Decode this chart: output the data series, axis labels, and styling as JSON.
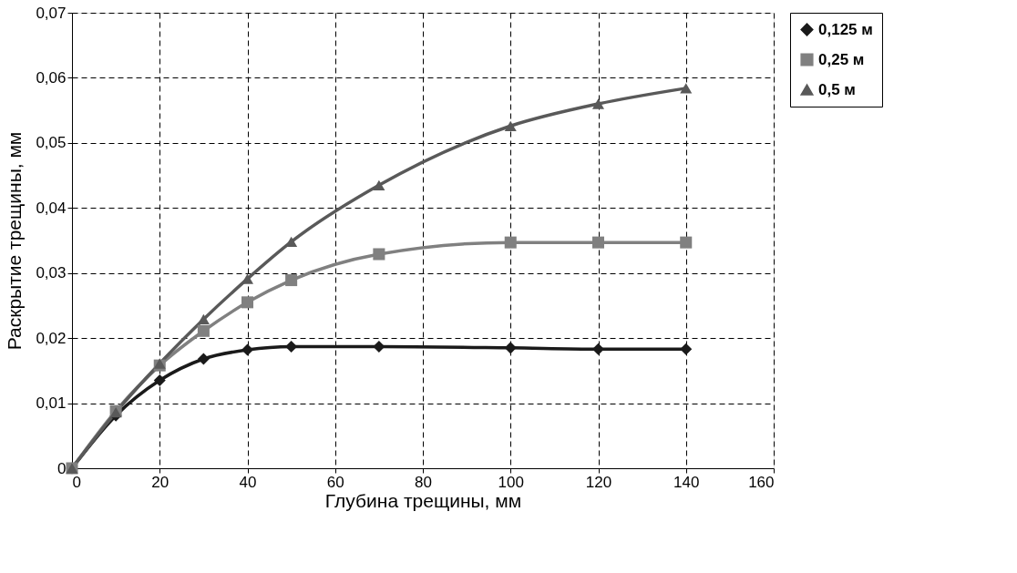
{
  "chart_data": {
    "type": "line",
    "xlabel": "Глубина трещины, мм",
    "ylabel": "Раскрытие трещины, мм",
    "x": [
      0,
      10,
      20,
      30,
      40,
      50,
      70,
      100,
      120,
      140
    ],
    "series": [
      {
        "name": "0,125 м",
        "color": "#1a1a1a",
        "marker": "diamond",
        "values": [
          0,
          0.0081,
          0.0135,
          0.0168,
          0.0182,
          0.0187,
          0.0187,
          0.0185,
          0.0183,
          0.0183
        ]
      },
      {
        "name": "0,25 м",
        "color": "#808080",
        "marker": "square",
        "values": [
          0,
          0.0088,
          0.0158,
          0.0211,
          0.0255,
          0.0289,
          0.0329,
          0.0347,
          0.0347,
          0.0347
        ]
      },
      {
        "name": "0,5 м",
        "color": "#595959",
        "marker": "triangle",
        "values": [
          0,
          0.0086,
          0.0161,
          0.0229,
          0.0291,
          0.0348,
          0.0435,
          0.0526,
          0.056,
          0.0584
        ]
      }
    ],
    "xlim": [
      0,
      160
    ],
    "xticks": [
      0,
      20,
      40,
      60,
      80,
      100,
      120,
      140,
      160
    ],
    "ylim": [
      0,
      0.07
    ],
    "yticks": [
      0,
      {
        "value": 0.01,
        "label": "0,01"
      },
      {
        "value": 0.02,
        "label": "0,02"
      },
      {
        "value": 0.03,
        "label": "0,03"
      },
      {
        "value": 0.04,
        "label": "0,04"
      },
      {
        "value": 0.05,
        "label": "0,05"
      },
      {
        "value": 0.06,
        "label": "0,06"
      },
      {
        "value": 0.07,
        "label": "0,07"
      }
    ],
    "grid": true,
    "legend": "right",
    "line_style": "solid"
  }
}
